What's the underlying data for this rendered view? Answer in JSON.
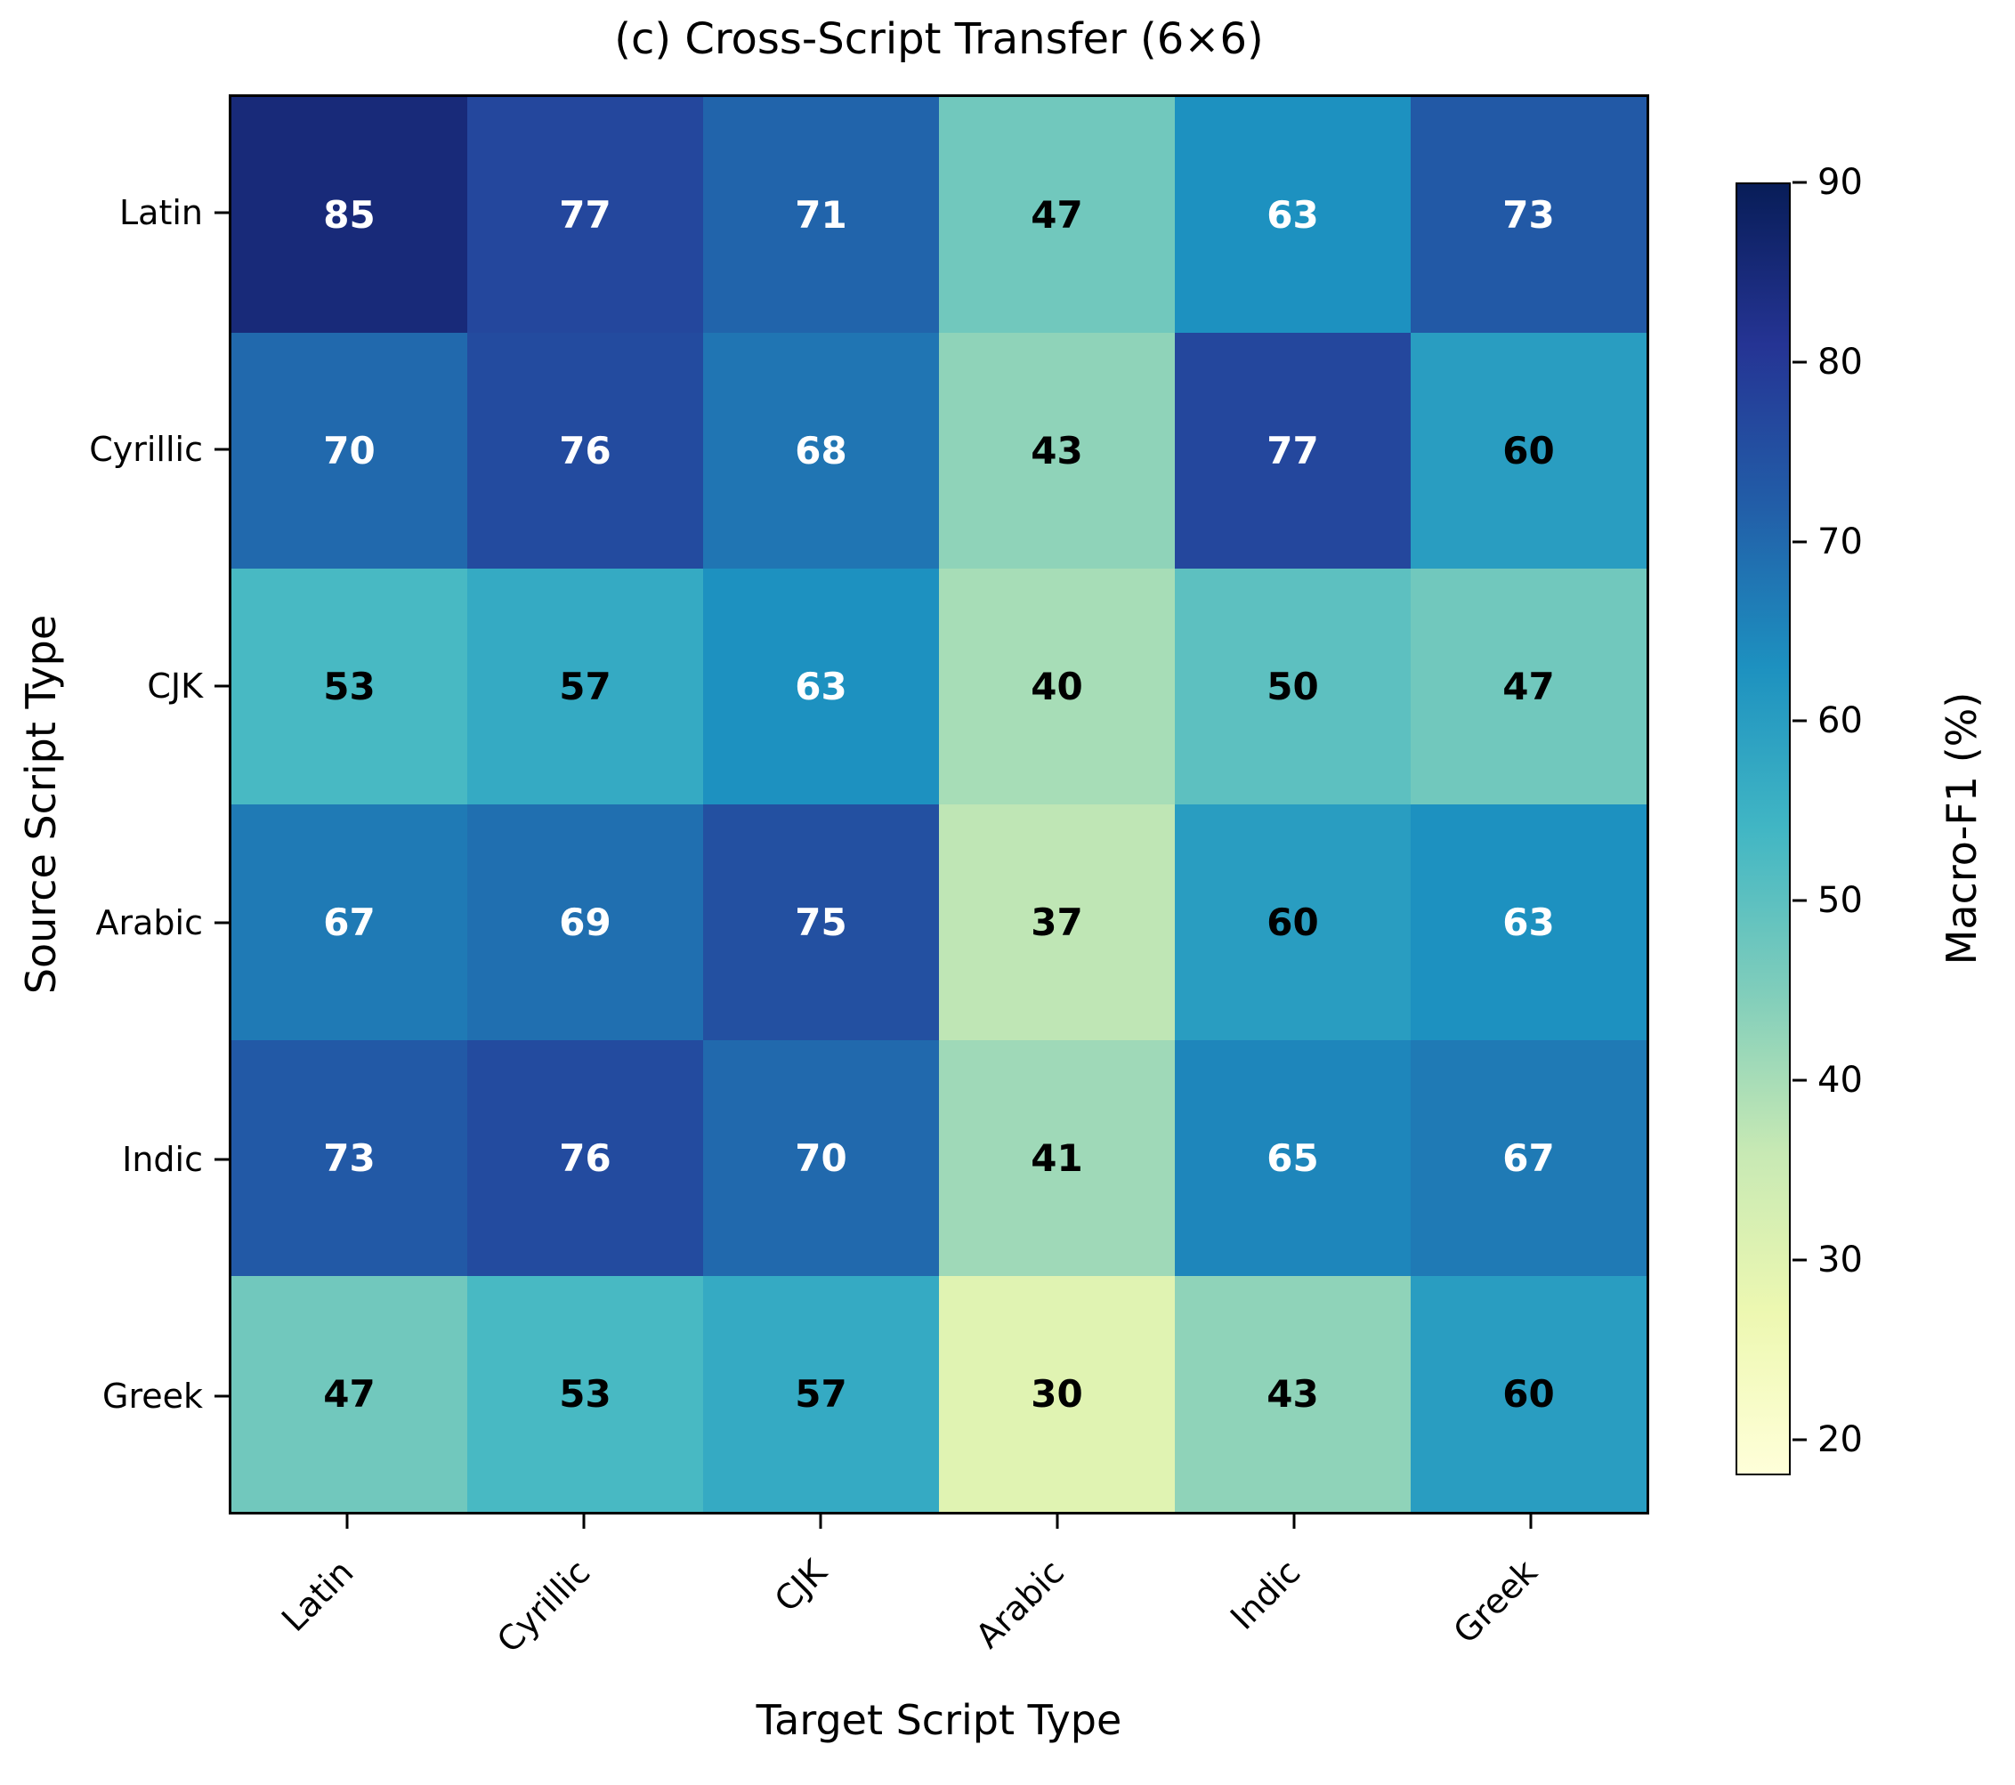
{
  "chart_data": {
    "type": "heatmap",
    "title": "(c) Cross-Script Transfer (6×6)",
    "xlabel": "Target Script Type",
    "ylabel": "Source Script Type",
    "rows": [
      "Latin",
      "Cyrillic",
      "CJK",
      "Arabic",
      "Indic",
      "Greek"
    ],
    "cols": [
      "Latin",
      "Cyrillic",
      "CJK",
      "Arabic",
      "Indic",
      "Greek"
    ],
    "values": [
      [
        85,
        77,
        71,
        47,
        63,
        73
      ],
      [
        70,
        76,
        68,
        43,
        77,
        60
      ],
      [
        53,
        57,
        63,
        40,
        50,
        47
      ],
      [
        67,
        69,
        75,
        37,
        60,
        63
      ],
      [
        73,
        76,
        70,
        41,
        65,
        67
      ],
      [
        47,
        53,
        57,
        30,
        43,
        60
      ]
    ],
    "colorbar": {
      "label": "Macro-F1 (%)",
      "ticks": [
        90,
        80,
        70,
        60,
        50,
        40,
        30,
        20
      ],
      "vmin": 18,
      "vmax": 90
    },
    "colormap": {
      "name": "YlGnBu",
      "stops": [
        "#ffffd9",
        "#edf8b1",
        "#c7e9b4",
        "#7fcdbb",
        "#41b6c4",
        "#1d91c0",
        "#225ea8",
        "#253494",
        "#081d58"
      ]
    },
    "annotation_colors": {
      "light": "#ffffff",
      "dark": "#000000"
    },
    "axis_color": "#000000",
    "background": "#ffffff",
    "grid": false,
    "legend_position": "colorbar-right"
  }
}
